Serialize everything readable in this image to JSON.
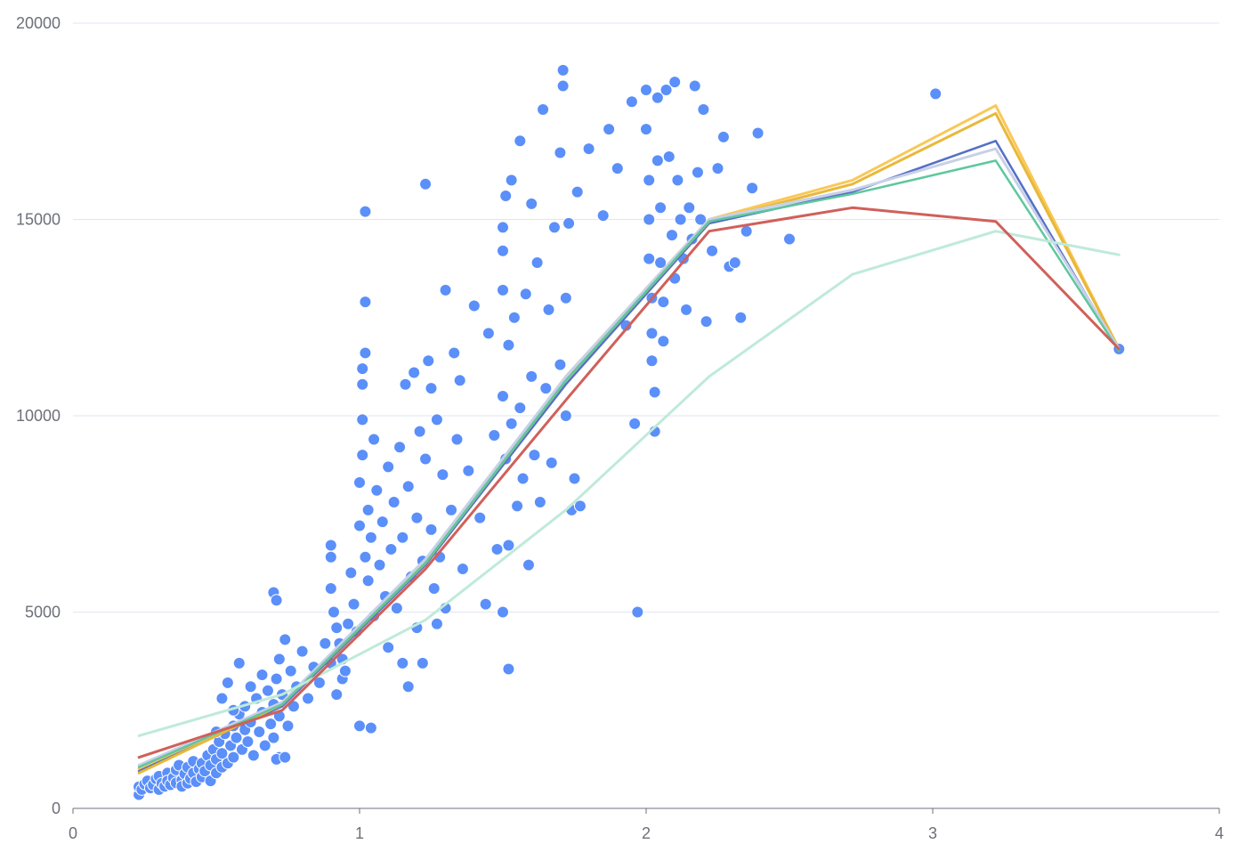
{
  "chart_data": {
    "type": "scatter",
    "title": "",
    "xlabel": "",
    "ylabel": "",
    "xlim": [
      0,
      4
    ],
    "ylim": [
      0,
      20000
    ],
    "x_ticks": [
      "0",
      "1",
      "2",
      "3",
      "4"
    ],
    "y_ticks": [
      "0",
      "5000",
      "10000",
      "15000",
      "20000"
    ],
    "grid": "horizontal",
    "scatter_color": "#5b8ff9",
    "scatter_points": [
      [
        0.23,
        350
      ],
      [
        0.23,
        550
      ],
      [
        0.24,
        480
      ],
      [
        0.25,
        620
      ],
      [
        0.26,
        700
      ],
      [
        0.27,
        520
      ],
      [
        0.28,
        600
      ],
      [
        0.29,
        750
      ],
      [
        0.3,
        480
      ],
      [
        0.3,
        820
      ],
      [
        0.31,
        640
      ],
      [
        0.32,
        560
      ],
      [
        0.33,
        900
      ],
      [
        0.33,
        700
      ],
      [
        0.34,
        600
      ],
      [
        0.35,
        780
      ],
      [
        0.36,
        980
      ],
      [
        0.36,
        650
      ],
      [
        0.37,
        1100
      ],
      [
        0.38,
        720
      ],
      [
        0.38,
        560
      ],
      [
        0.39,
        880
      ],
      [
        0.4,
        1050
      ],
      [
        0.4,
        640
      ],
      [
        0.41,
        760
      ],
      [
        0.42,
        1200
      ],
      [
        0.42,
        900
      ],
      [
        0.43,
        680
      ],
      [
        0.44,
        1000
      ],
      [
        0.45,
        800
      ],
      [
        0.45,
        1150
      ],
      [
        0.46,
        950
      ],
      [
        0.47,
        1350
      ],
      [
        0.48,
        700
      ],
      [
        0.48,
        1100
      ],
      [
        0.49,
        1500
      ],
      [
        0.5,
        900
      ],
      [
        0.5,
        1250
      ],
      [
        0.51,
        1700
      ],
      [
        0.52,
        1050
      ],
      [
        0.52,
        1400
      ],
      [
        0.53,
        1900
      ],
      [
        0.54,
        1150
      ],
      [
        0.55,
        1600
      ],
      [
        0.56,
        2100
      ],
      [
        0.56,
        1300
      ],
      [
        0.57,
        1800
      ],
      [
        0.58,
        2400
      ],
      [
        0.59,
        1500
      ],
      [
        0.6,
        2000
      ],
      [
        0.6,
        2600
      ],
      [
        0.61,
        1700
      ],
      [
        0.62,
        2200
      ],
      [
        0.63,
        1350
      ],
      [
        0.64,
        2800
      ],
      [
        0.65,
        1950
      ],
      [
        0.66,
        2450
      ],
      [
        0.67,
        1600
      ],
      [
        0.68,
        3000
      ],
      [
        0.69,
        2150
      ],
      [
        0.7,
        2650
      ],
      [
        0.7,
        1800
      ],
      [
        0.71,
        3300
      ],
      [
        0.72,
        2350
      ],
      [
        0.72,
        3800
      ],
      [
        0.73,
        2900
      ],
      [
        0.74,
        4300
      ],
      [
        0.75,
        2100
      ],
      [
        0.76,
        3500
      ],
      [
        0.77,
        2600
      ],
      [
        0.78,
        3100
      ],
      [
        0.8,
        4000
      ],
      [
        0.82,
        2800
      ],
      [
        0.84,
        3600
      ],
      [
        0.86,
        3200
      ],
      [
        0.88,
        4200
      ],
      [
        0.9,
        3700
      ],
      [
        0.92,
        2900
      ],
      [
        0.94,
        3300
      ],
      [
        0.96,
        4700
      ],
      [
        0.5,
        1950
      ],
      [
        0.52,
        2800
      ],
      [
        0.54,
        3200
      ],
      [
        0.56,
        2500
      ],
      [
        0.58,
        3700
      ],
      [
        0.62,
        3100
      ],
      [
        0.66,
        3400
      ],
      [
        0.7,
        5500
      ],
      [
        0.71,
        5300
      ],
      [
        0.72,
        1300
      ],
      [
        0.71,
        1250
      ],
      [
        0.74,
        1300
      ],
      [
        0.9,
        6700
      ],
      [
        0.9,
        6400
      ],
      [
        0.9,
        5600
      ],
      [
        0.91,
        5000
      ],
      [
        0.92,
        4600
      ],
      [
        0.93,
        4200
      ],
      [
        0.94,
        3800
      ],
      [
        0.95,
        3500
      ],
      [
        0.97,
        6000
      ],
      [
        0.98,
        5200
      ],
      [
        0.99,
        4500
      ],
      [
        1.0,
        2100
      ],
      [
        1.0,
        7200
      ],
      [
        1.0,
        8300
      ],
      [
        1.01,
        9000
      ],
      [
        1.01,
        9900
      ],
      [
        1.01,
        10800
      ],
      [
        1.01,
        11200
      ],
      [
        1.02,
        11600
      ],
      [
        1.02,
        12900
      ],
      [
        1.02,
        15200
      ],
      [
        1.02,
        6400
      ],
      [
        1.03,
        5800
      ],
      [
        1.03,
        7600
      ],
      [
        1.04,
        6900
      ],
      [
        1.04,
        2050
      ],
      [
        1.05,
        9400
      ],
      [
        1.05,
        4900
      ],
      [
        1.06,
        8100
      ],
      [
        1.07,
        6200
      ],
      [
        1.08,
        7300
      ],
      [
        1.09,
        5400
      ],
      [
        1.1,
        8700
      ],
      [
        1.1,
        4100
      ],
      [
        1.11,
        6600
      ],
      [
        1.12,
        7800
      ],
      [
        1.13,
        5100
      ],
      [
        1.14,
        9200
      ],
      [
        1.15,
        6900
      ],
      [
        1.15,
        3700
      ],
      [
        1.16,
        10800
      ],
      [
        1.17,
        8200
      ],
      [
        1.17,
        3100
      ],
      [
        1.18,
        5900
      ],
      [
        1.19,
        11100
      ],
      [
        1.2,
        7400
      ],
      [
        1.2,
        4600
      ],
      [
        1.21,
        9600
      ],
      [
        1.22,
        6300
      ],
      [
        1.22,
        3700
      ],
      [
        1.23,
        8900
      ],
      [
        1.23,
        15900
      ],
      [
        1.24,
        11400
      ],
      [
        1.25,
        7100
      ],
      [
        1.25,
        10700
      ],
      [
        1.26,
        5600
      ],
      [
        1.27,
        9900
      ],
      [
        1.27,
        4700
      ],
      [
        1.28,
        6400
      ],
      [
        1.29,
        8500
      ],
      [
        1.3,
        13200
      ],
      [
        1.3,
        5100
      ],
      [
        1.32,
        7600
      ],
      [
        1.33,
        11600
      ],
      [
        1.34,
        9400
      ],
      [
        1.35,
        10900
      ],
      [
        1.36,
        6100
      ],
      [
        1.38,
        8600
      ],
      [
        1.4,
        12800
      ],
      [
        1.42,
        7400
      ],
      [
        1.44,
        5200
      ],
      [
        1.45,
        12100
      ],
      [
        1.47,
        9500
      ],
      [
        1.48,
        6600
      ],
      [
        1.5,
        13200
      ],
      [
        1.5,
        14200
      ],
      [
        1.5,
        14800
      ],
      [
        1.5,
        10500
      ],
      [
        1.5,
        5000
      ],
      [
        1.51,
        15600
      ],
      [
        1.51,
        8900
      ],
      [
        1.52,
        11800
      ],
      [
        1.52,
        6700
      ],
      [
        1.52,
        3550
      ],
      [
        1.53,
        16000
      ],
      [
        1.53,
        9800
      ],
      [
        1.54,
        12500
      ],
      [
        1.55,
        7700
      ],
      [
        1.56,
        17000
      ],
      [
        1.56,
        10200
      ],
      [
        1.57,
        8400
      ],
      [
        1.58,
        13100
      ],
      [
        1.59,
        6200
      ],
      [
        1.6,
        11000
      ],
      [
        1.6,
        15400
      ],
      [
        1.61,
        9000
      ],
      [
        1.62,
        13900
      ],
      [
        1.63,
        7800
      ],
      [
        1.64,
        17800
      ],
      [
        1.65,
        10700
      ],
      [
        1.66,
        12700
      ],
      [
        1.67,
        8800
      ],
      [
        1.68,
        14800
      ],
      [
        1.7,
        11300
      ],
      [
        1.7,
        16700
      ],
      [
        1.71,
        18400
      ],
      [
        1.71,
        18800
      ],
      [
        1.72,
        13000
      ],
      [
        1.72,
        10000
      ],
      [
        1.73,
        14900
      ],
      [
        1.74,
        7600
      ],
      [
        1.75,
        8400
      ],
      [
        1.76,
        15700
      ],
      [
        1.77,
        7700
      ],
      [
        1.8,
        16800
      ],
      [
        1.85,
        15100
      ],
      [
        1.87,
        17300
      ],
      [
        1.9,
        16300
      ],
      [
        1.93,
        12300
      ],
      [
        1.95,
        18000
      ],
      [
        1.96,
        9800
      ],
      [
        1.97,
        5000
      ],
      [
        2.0,
        18300
      ],
      [
        2.0,
        17300
      ],
      [
        2.01,
        16000
      ],
      [
        2.01,
        15000
      ],
      [
        2.01,
        14000
      ],
      [
        2.02,
        13000
      ],
      [
        2.02,
        12100
      ],
      [
        2.02,
        11400
      ],
      [
        2.03,
        10600
      ],
      [
        2.03,
        9600
      ],
      [
        2.04,
        18100
      ],
      [
        2.04,
        16500
      ],
      [
        2.05,
        15300
      ],
      [
        2.05,
        13900
      ],
      [
        2.06,
        12900
      ],
      [
        2.06,
        11900
      ],
      [
        2.07,
        18300
      ],
      [
        2.08,
        16600
      ],
      [
        2.09,
        14600
      ],
      [
        2.1,
        18500
      ],
      [
        2.1,
        13500
      ],
      [
        2.11,
        16000
      ],
      [
        2.12,
        15000
      ],
      [
        2.13,
        14000
      ],
      [
        2.14,
        12700
      ],
      [
        2.15,
        15300
      ],
      [
        2.16,
        14500
      ],
      [
        2.17,
        18400
      ],
      [
        2.18,
        16200
      ],
      [
        2.19,
        15000
      ],
      [
        2.2,
        17800
      ],
      [
        2.21,
        12400
      ],
      [
        2.23,
        14200
      ],
      [
        2.25,
        16300
      ],
      [
        2.27,
        17100
      ],
      [
        2.29,
        13800
      ],
      [
        2.31,
        13900
      ],
      [
        2.33,
        12500
      ],
      [
        2.35,
        14700
      ],
      [
        2.37,
        15800
      ],
      [
        2.39,
        17200
      ],
      [
        2.5,
        14500
      ],
      [
        3.01,
        18200
      ],
      [
        3.65,
        11700
      ]
    ],
    "series": [
      {
        "color": "#fac858",
        "x": [
          0.23,
          0.73,
          1.23,
          1.72,
          2.22,
          2.72,
          3.22,
          3.65
        ],
        "y": [
          1000,
          2700,
          6300,
          11000,
          15000,
          16000,
          17900,
          11700
        ],
        "width": 3
      },
      {
        "color": "#5470c6",
        "x": [
          0.23,
          0.73,
          1.23,
          1.72,
          2.22,
          2.72,
          3.22,
          3.65
        ],
        "y": [
          950,
          2600,
          6200,
          10800,
          14900,
          15700,
          17000,
          11650
        ],
        "width": 2.5
      },
      {
        "color": "#e8b83a",
        "x": [
          0.23,
          0.73,
          1.23,
          1.72,
          2.22,
          2.72,
          3.22,
          3.65
        ],
        "y": [
          900,
          2650,
          6250,
          10900,
          14950,
          15900,
          17700,
          11700
        ],
        "width": 3
      },
      {
        "color": "#c8d0e8",
        "x": [
          0.23,
          0.73,
          1.23,
          1.72,
          2.22,
          2.72,
          3.22,
          3.65
        ],
        "y": [
          1100,
          2700,
          6350,
          11000,
          15000,
          15750,
          16800,
          11700
        ],
        "width": 3
      },
      {
        "color": "#5ec79e",
        "x": [
          0.23,
          0.73,
          1.23,
          1.72,
          2.22,
          2.72,
          3.22,
          3.65
        ],
        "y": [
          1050,
          2650,
          6250,
          10900,
          14950,
          15650,
          16500,
          11650
        ],
        "width": 2.5
      },
      {
        "color": "#bfead9",
        "x": [
          0.23,
          0.73,
          1.23,
          1.72,
          2.22,
          2.72,
          3.22,
          3.65
        ],
        "y": [
          1850,
          2900,
          4800,
          7600,
          11000,
          13600,
          14700,
          14100
        ],
        "width": 3
      },
      {
        "color": "#d0605a",
        "x": [
          0.23,
          0.73,
          1.23,
          1.72,
          2.22,
          2.72,
          3.22,
          3.65
        ],
        "y": [
          1300,
          2500,
          6100,
          10400,
          14700,
          15300,
          14950,
          11700
        ],
        "width": 3
      }
    ]
  }
}
